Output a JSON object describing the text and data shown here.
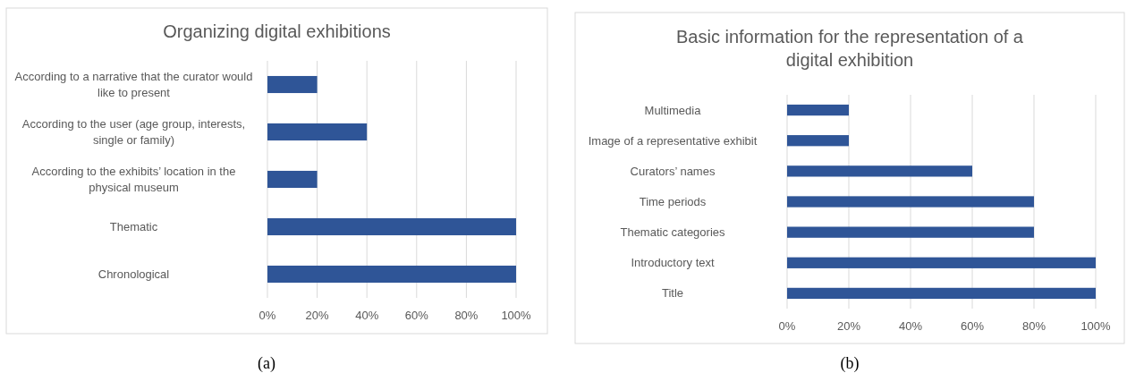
{
  "chart_data": [
    {
      "type": "bar",
      "orientation": "horizontal",
      "title": "Organizing digital exhibitions",
      "categories": [
        "According to a narrative that the curator would like to present",
        "According to the user (age group, interests, single or family)",
        "According to the exhibits’ location in the physical museum",
        "Thematic",
        "Chronological"
      ],
      "values": [
        20,
        40,
        20,
        100,
        100
      ],
      "color": "#2f5597",
      "xlim": [
        0,
        100
      ],
      "xticks": [
        {
          "value": 0,
          "label": "0%"
        },
        {
          "value": 20,
          "label": "20%"
        },
        {
          "value": 40,
          "label": "40%"
        },
        {
          "value": 60,
          "label": "60%"
        },
        {
          "value": 80,
          "label": "80%"
        },
        {
          "value": 100,
          "label": "100%"
        }
      ],
      "grid": "x",
      "annotations": [
        "(a)"
      ]
    },
    {
      "type": "bar",
      "orientation": "horizontal",
      "title": "Basic information for the representation of a digital exhibition",
      "categories": [
        "Multimedia",
        "Image of a representative exhibit",
        "Curators’ names",
        "Time periods",
        "Thematic categories",
        "Introductory text",
        "Title"
      ],
      "values": [
        20,
        20,
        60,
        80,
        80,
        100,
        100
      ],
      "color": "#2f5597",
      "xlim": [
        0,
        100
      ],
      "xticks": [
        {
          "value": 0,
          "label": "0%"
        },
        {
          "value": 20,
          "label": "20%"
        },
        {
          "value": 40,
          "label": "40%"
        },
        {
          "value": 60,
          "label": "60%"
        },
        {
          "value": 80,
          "label": "80%"
        },
        {
          "value": 100,
          "label": "100%"
        }
      ],
      "grid": "x",
      "annotations": [
        "(b)"
      ]
    }
  ]
}
